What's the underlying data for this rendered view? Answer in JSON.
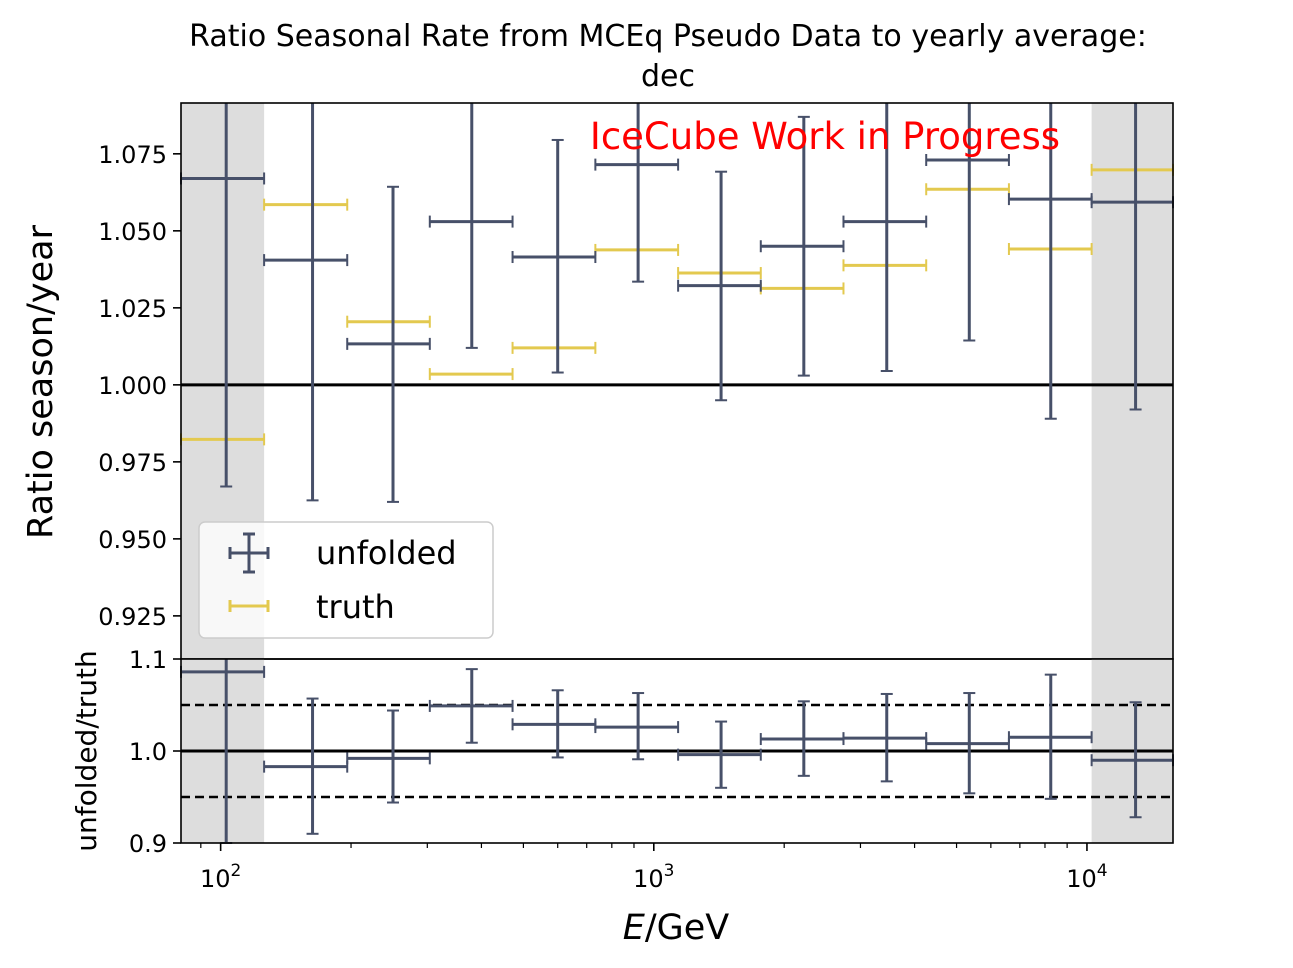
{
  "chart_data": [
    {
      "type": "scatter",
      "panel": "main",
      "title": "Ratio Seasonal Rate from MCEq Pseudo Data to yearly average:",
      "subtitle": "dec",
      "xlabel": "E/GeV",
      "ylabel": "Ratio season/year",
      "xscale": "log",
      "xlim": [
        81,
        15800
      ],
      "ylim": [
        0.911,
        1.0915
      ],
      "yticks": [
        "0.925",
        "0.950",
        "0.975",
        "1.000",
        "1.025",
        "1.050",
        "1.075"
      ],
      "grid": false,
      "legend": "lower-left",
      "watermark": "IceCube Work in Progress",
      "bin_edges": [
        81,
        126,
        196,
        304,
        472,
        733,
        1138,
        1766,
        2741,
        4255,
        6605,
        10252,
        15800
      ],
      "bin_centers": [
        103,
        163,
        250,
        380,
        600,
        920,
        1430,
        2220,
        3450,
        5350,
        8250,
        12950
      ],
      "shaded_x_ranges": [
        [
          81,
          126
        ],
        [
          10252,
          15800
        ]
      ],
      "reference_line": 1.0,
      "series": [
        {
          "name": "unfolded",
          "color": "#475069",
          "values": [
            1.067,
            1.0405,
            1.0133,
            1.053,
            1.0415,
            1.0715,
            1.0322,
            1.045,
            1.053,
            1.073,
            1.0603,
            1.0593
          ],
          "yerr_low": [
            0.1,
            0.078,
            0.0513,
            0.041,
            0.0375,
            0.038,
            0.0372,
            0.042,
            0.0485,
            0.0586,
            0.0713,
            0.0673
          ],
          "yerr_high": [
            0.1,
            0.06,
            0.051,
            0.06,
            0.038,
            0.04,
            0.037,
            0.042,
            0.05,
            0.05,
            0.04,
            0.04
          ]
        },
        {
          "name": "truth",
          "color": "#e3c94f",
          "values": [
            0.9823,
            1.0585,
            1.0205,
            1.0035,
            1.012,
            1.0438,
            1.0363,
            1.0313,
            1.0388,
            1.0635,
            1.0441,
            1.0698
          ]
        }
      ]
    },
    {
      "type": "scatter",
      "panel": "ratio",
      "xlabel": "E/GeV",
      "ylabel": "unfolded/truth",
      "xscale": "log",
      "xlim": [
        81,
        15800
      ],
      "ylim": [
        0.9,
        1.1
      ],
      "yticks": [
        "0.9",
        "1.0",
        "1.1"
      ],
      "xticks": [
        "10",
        "10",
        "10"
      ],
      "xtick_exponents": [
        "2",
        "3",
        "4"
      ],
      "xtick_values": [
        100,
        1000,
        10000
      ],
      "reference_lines": [
        1.0
      ],
      "dashed_lines": [
        0.95,
        1.05
      ],
      "shaded_x_ranges": [
        [
          81,
          126
        ],
        [
          10252,
          15800
        ]
      ],
      "series": [
        {
          "name": "unfolded/truth",
          "color": "#475069",
          "values": [
            1.086,
            0.983,
            0.992,
            1.049,
            1.029,
            1.026,
            0.996,
            1.013,
            1.014,
            1.008,
            1.015,
            0.99
          ],
          "yerr_low": [
            0.186,
            0.073,
            0.048,
            0.04,
            0.036,
            0.035,
            0.036,
            0.04,
            0.047,
            0.054,
            0.067,
            0.062
          ],
          "yerr_high": [
            0.05,
            0.074,
            0.052,
            0.04,
            0.037,
            0.037,
            0.036,
            0.041,
            0.048,
            0.055,
            0.068,
            0.063
          ]
        }
      ]
    }
  ]
}
